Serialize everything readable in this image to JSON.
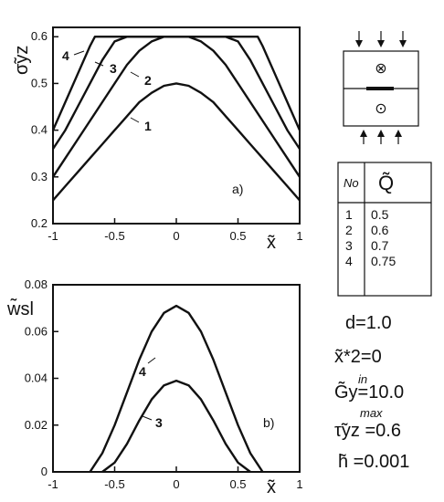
{
  "chart_data": [
    {
      "panel_label": "a)",
      "type": "line",
      "xlabel": "x̃",
      "ylabel": "σ̃yz",
      "xlim": [
        -1,
        1
      ],
      "ylim": [
        0.2,
        0.62
      ],
      "x_ticks": [
        "-1",
        "-0.5",
        "0",
        "0.5",
        "1"
      ],
      "y_ticks": [
        "0.2",
        "0.3",
        "0.4",
        "0.5",
        "0.6"
      ],
      "x_tick_values": [
        -1,
        -0.5,
        0,
        0.5,
        1
      ],
      "y_tick_values": [
        0.2,
        0.3,
        0.4,
        0.5,
        0.6
      ],
      "series": [
        {
          "name": "1",
          "x": [
            -1,
            -0.9,
            -0.8,
            -0.7,
            -0.6,
            -0.5,
            -0.4,
            -0.3,
            -0.2,
            -0.1,
            0,
            0.1,
            0.2,
            0.3,
            0.4,
            0.5,
            0.6,
            0.7,
            0.8,
            0.9,
            1
          ],
          "y": [
            0.25,
            0.28,
            0.31,
            0.34,
            0.37,
            0.4,
            0.43,
            0.46,
            0.48,
            0.495,
            0.5,
            0.495,
            0.48,
            0.46,
            0.43,
            0.4,
            0.37,
            0.34,
            0.31,
            0.28,
            0.25
          ]
        },
        {
          "name": "2",
          "x": [
            -1,
            -0.9,
            -0.8,
            -0.7,
            -0.6,
            -0.5,
            -0.4,
            -0.3,
            -0.2,
            -0.1,
            0,
            0.1,
            0.2,
            0.3,
            0.4,
            0.5,
            0.6,
            0.7,
            0.8,
            0.9,
            1
          ],
          "y": [
            0.3,
            0.34,
            0.38,
            0.42,
            0.46,
            0.5,
            0.54,
            0.57,
            0.59,
            0.6,
            0.6,
            0.6,
            0.59,
            0.57,
            0.54,
            0.5,
            0.46,
            0.42,
            0.38,
            0.34,
            0.3
          ]
        },
        {
          "name": "3",
          "x": [
            -1,
            -0.9,
            -0.8,
            -0.7,
            -0.6,
            -0.5,
            -0.4,
            -0.3,
            0,
            0.3,
            0.4,
            0.5,
            0.6,
            0.7,
            0.8,
            0.9,
            1
          ],
          "y": [
            0.36,
            0.4,
            0.45,
            0.5,
            0.55,
            0.59,
            0.6,
            0.6,
            0.6,
            0.6,
            0.6,
            0.59,
            0.55,
            0.5,
            0.45,
            0.4,
            0.36
          ]
        },
        {
          "name": "4",
          "x": [
            -1,
            -0.9,
            -0.8,
            -0.7,
            -0.66,
            -0.5,
            0,
            0.5,
            0.66,
            0.7,
            0.8,
            0.9,
            1
          ],
          "y": [
            0.4,
            0.46,
            0.52,
            0.58,
            0.6,
            0.6,
            0.6,
            0.6,
            0.6,
            0.58,
            0.52,
            0.46,
            0.4
          ]
        }
      ],
      "curve_labels": [
        "4",
        "3",
        "2",
        "1"
      ]
    },
    {
      "panel_label": "b)",
      "type": "line",
      "xlabel": "x̃",
      "ylabel": "w̃sl",
      "xlim": [
        -1,
        1
      ],
      "ylim": [
        0,
        0.08
      ],
      "x_ticks": [
        "-1",
        "-0.5",
        "0",
        "0.5",
        "1"
      ],
      "y_ticks": [
        "0",
        "0.02",
        "0.04",
        "0.06",
        "0.08"
      ],
      "x_tick_values": [
        -1,
        -0.5,
        0,
        0.5,
        1
      ],
      "y_tick_values": [
        0,
        0.02,
        0.04,
        0.06,
        0.08
      ],
      "series": [
        {
          "name": "3",
          "x": [
            -0.6,
            -0.5,
            -0.4,
            -0.3,
            -0.2,
            -0.1,
            0,
            0.1,
            0.2,
            0.3,
            0.4,
            0.5,
            0.6
          ],
          "y": [
            0,
            0.004,
            0.012,
            0.022,
            0.031,
            0.037,
            0.039,
            0.037,
            0.031,
            0.022,
            0.012,
            0.004,
            0
          ]
        },
        {
          "name": "4",
          "x": [
            -0.7,
            -0.6,
            -0.5,
            -0.4,
            -0.3,
            -0.2,
            -0.1,
            0,
            0.1,
            0.2,
            0.3,
            0.4,
            0.5,
            0.6,
            0.7
          ],
          "y": [
            0,
            0.008,
            0.02,
            0.034,
            0.048,
            0.06,
            0.068,
            0.071,
            0.068,
            0.06,
            0.048,
            0.034,
            0.02,
            0.008,
            0
          ]
        }
      ],
      "curve_labels": [
        "4",
        "3"
      ]
    }
  ],
  "legend_table": {
    "header_no": "No",
    "header_q": "Q̃",
    "rows": [
      {
        "no": "1",
        "q": "0.5"
      },
      {
        "no": "2",
        "q": "0.6"
      },
      {
        "no": "3",
        "q": "0.7"
      },
      {
        "no": "4",
        "q": "0.75"
      }
    ]
  },
  "schematic": {
    "top_symbol": "⊗",
    "bottom_symbol": "⊙"
  },
  "parameters": [
    {
      "main": "d=1.0",
      "sup": ""
    },
    {
      "main": "x̃*2=0",
      "sup": ""
    },
    {
      "main": "G̃y=10.0",
      "sup": "in"
    },
    {
      "main": "τ̃yz =0.6",
      "sup": "max"
    },
    {
      "main": "h̃ =0.001",
      "sup": ""
    }
  ]
}
